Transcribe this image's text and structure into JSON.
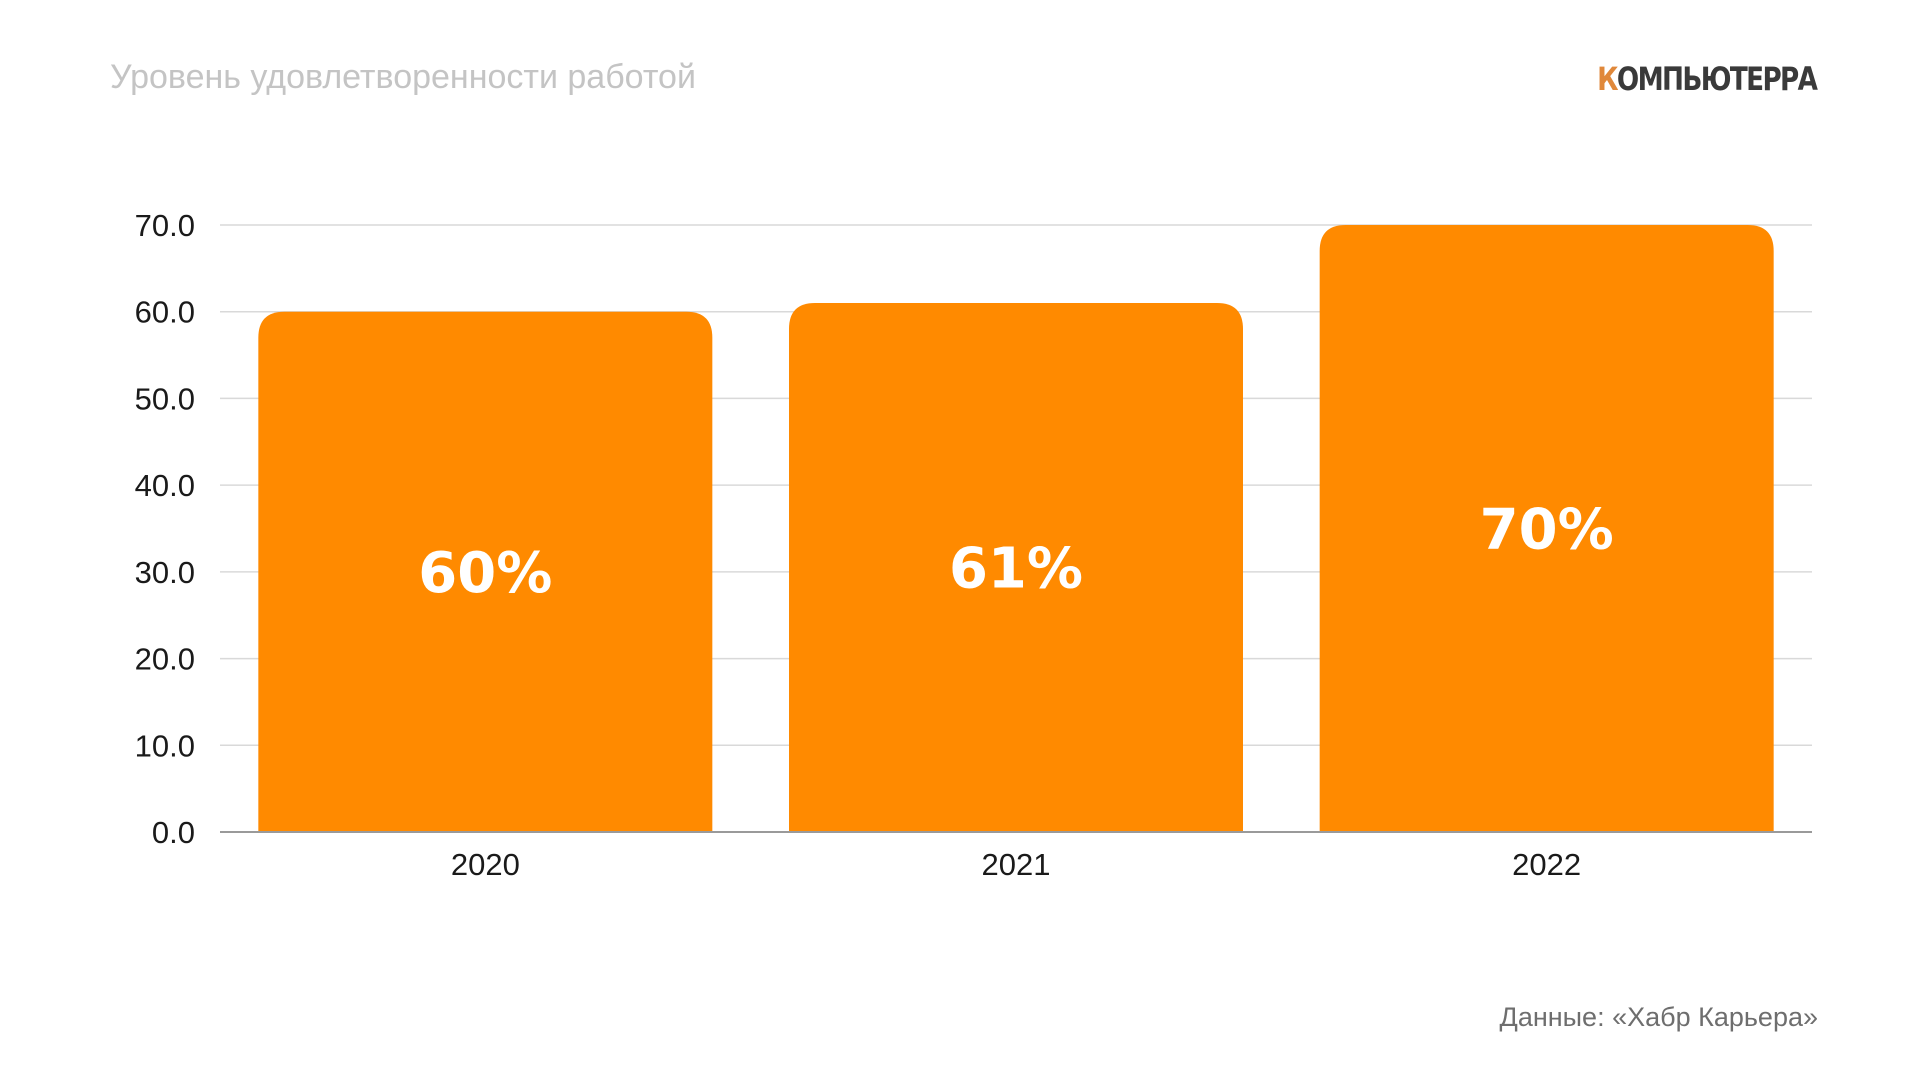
{
  "header": {
    "title": "Уровень удовлетворенности работой",
    "logo_first_letter": "К",
    "logo_rest": "ОМПЬЮТЕРРА"
  },
  "footer": {
    "source": "Данные: «Хабр Карьера»"
  },
  "colors": {
    "bar": "#FF8A00",
    "grid": "#d9d9d9",
    "axis": "#9a9a9a",
    "logo_accent": "#e0883a",
    "logo_text": "#3a3a3a"
  },
  "chart_data": {
    "type": "bar",
    "title": "Уровень удовлетворенности работой",
    "categories": [
      "2020",
      "2021",
      "2022"
    ],
    "values": [
      60,
      61,
      70
    ],
    "data_labels": [
      "60%",
      "61%",
      "70%"
    ],
    "xlabel": "",
    "ylabel": "",
    "ylim": [
      0,
      70
    ],
    "yticks": [
      "0.0",
      "10.0",
      "20.0",
      "30.0",
      "40.0",
      "50.0",
      "60.0",
      "70.0"
    ],
    "grid": true,
    "legend": "none"
  }
}
